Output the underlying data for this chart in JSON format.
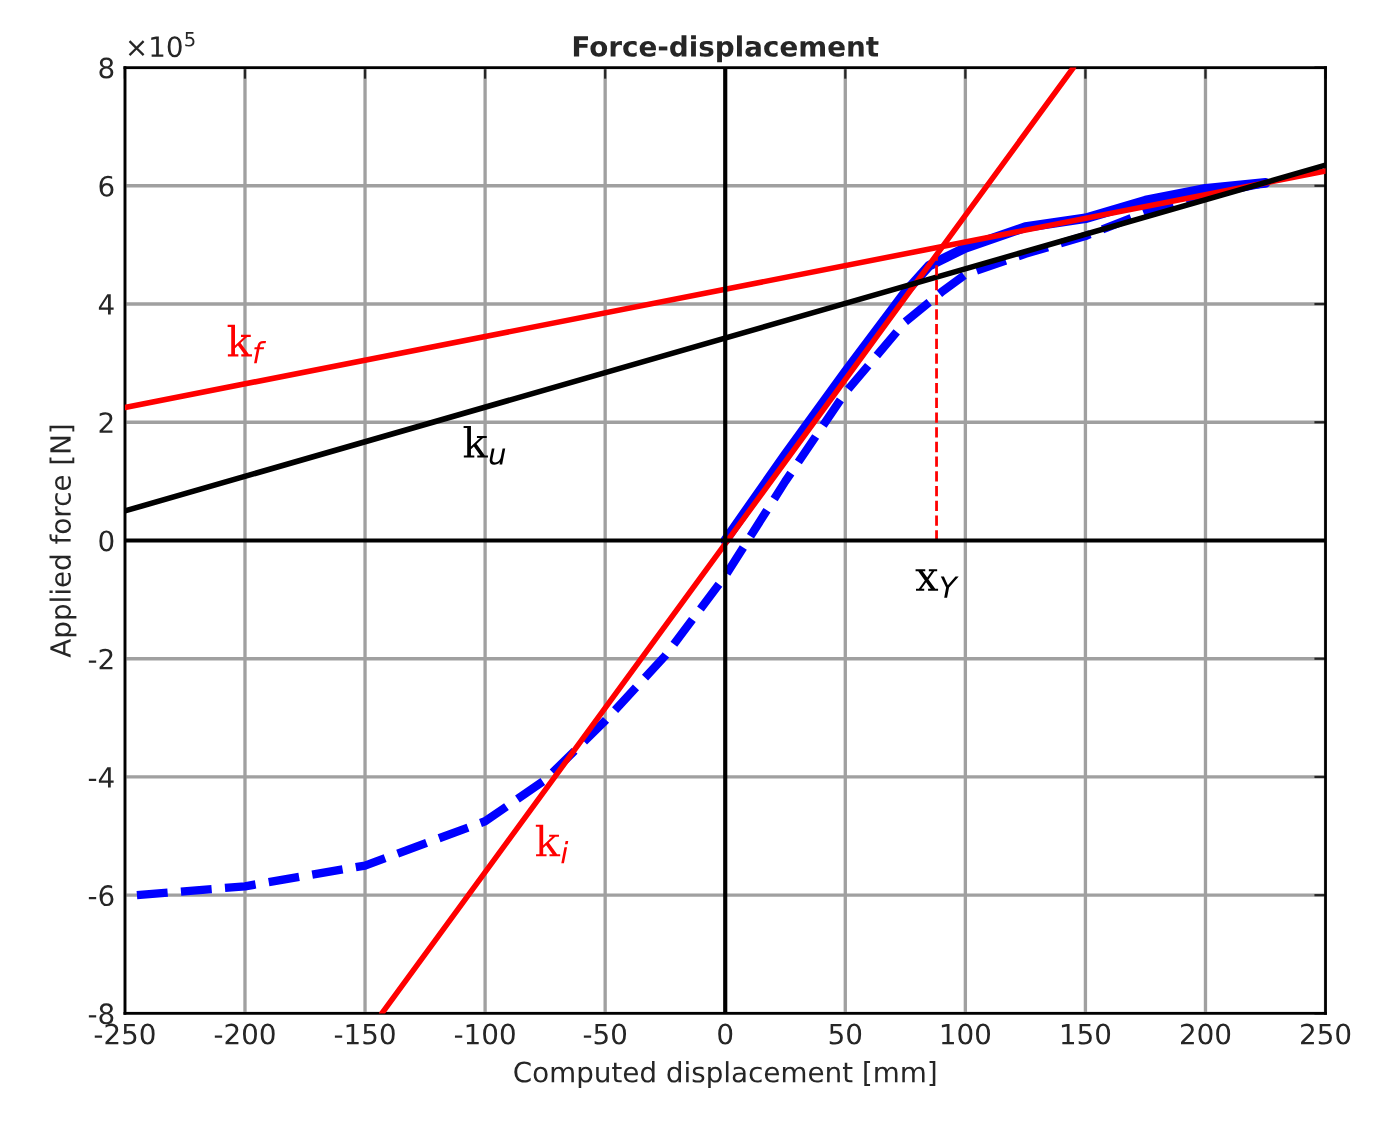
{
  "chart_data": {
    "type": "line",
    "title": "Force-displacement",
    "xlabel": "Computed displacement [mm]",
    "ylabel": "Applied force [N]",
    "xlim": [
      -250,
      250
    ],
    "xticks": [
      -250,
      -200,
      -150,
      -100,
      -50,
      0,
      50,
      100,
      150,
      200,
      250
    ],
    "ylim": [
      -8,
      8
    ],
    "yticks": [
      -8,
      -6,
      -4,
      -2,
      0,
      2,
      4,
      6,
      8
    ],
    "grid": true,
    "legend": false,
    "marker": "none",
    "series": [
      {
        "color": "#0000ff",
        "line_style": "dashed",
        "x": [
          -245,
          -200,
          -150,
          -100,
          -75,
          -50,
          -25,
          0,
          25,
          50,
          75,
          90,
          100,
          125,
          150,
          175,
          200,
          225
        ],
        "values": [
          -6.0,
          -5.85,
          -5.5,
          -4.75,
          -4.05,
          -3.05,
          -1.95,
          -0.6,
          1.0,
          2.5,
          3.7,
          4.2,
          4.5,
          4.85,
          5.15,
          5.55,
          5.85,
          6.05
        ]
      },
      {
        "color": "#0000ff",
        "line_style": "solid",
        "x": [
          0,
          25,
          50,
          75,
          85,
          100,
          125,
          150,
          175,
          200,
          225
        ],
        "values": [
          0.0,
          1.45,
          2.85,
          4.2,
          4.65,
          4.95,
          5.3,
          5.45,
          5.75,
          5.95,
          6.05
        ]
      },
      {
        "name": "k$_{i}$",
        "color": "#ff0000",
        "line_style": "solid",
        "x": [
          -143,
          145
        ],
        "values": [
          -8,
          8
        ]
      },
      {
        "name": "k$_{f}$",
        "color": "#ff0000",
        "line_style": "solid",
        "x": [
          -250,
          250
        ],
        "values": [
          2.25,
          6.25
        ]
      },
      {
        "name": "k$_{u}$",
        "color": "#000000",
        "line_style": "solid",
        "x": [
          -250,
          250
        ],
        "values": [
          0.5,
          6.35
        ]
      },
      {
        "color": "#ff0000",
        "line_style": "dashed",
        "x": [
          88,
          88
        ],
        "values": [
          0,
          4.85
        ]
      },
      {
        "color": "#000000",
        "line_style": "solid",
        "x": [
          -250,
          250
        ],
        "values": [
          0,
          0
        ]
      },
      {
        "color": "#000000",
        "line_style": "solid",
        "x": [
          0,
          0
        ],
        "values": [
          -8,
          8
        ]
      }
    ],
    "annotations": [
      "×10$^{5}$",
      {
        "text": "x$_{Y}$",
        "x": 88,
        "y": 0
      }
    ]
  }
}
